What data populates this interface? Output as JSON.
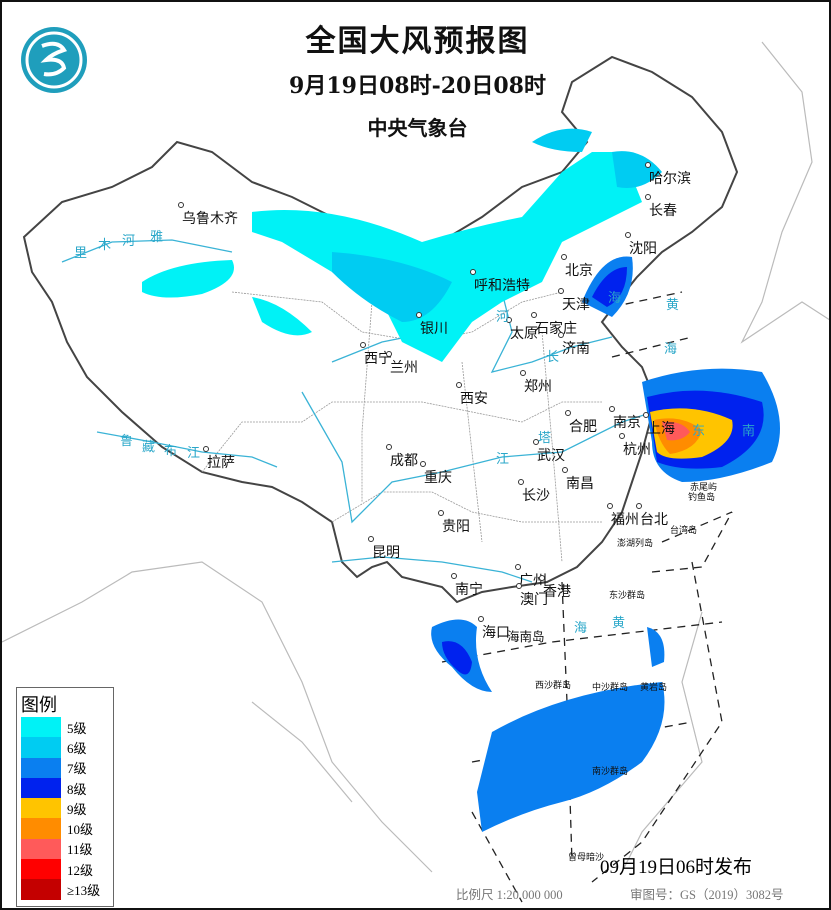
{
  "header": {
    "title": "全国大风预报图",
    "valid_period": "9月19日08时-20日08时",
    "issuer": "中央气象台",
    "logo_icon": "cma-logo"
  },
  "legend": {
    "title": "图例",
    "items": [
      {
        "label": "5级",
        "color": "#00f2f6"
      },
      {
        "label": "6级",
        "color": "#00ccf2"
      },
      {
        "label": "7级",
        "color": "#0a7ff0"
      },
      {
        "label": "8级",
        "color": "#0022ee"
      },
      {
        "label": "9级",
        "color": "#ffc400"
      },
      {
        "label": "10级",
        "color": "#ff8c00"
      },
      {
        "label": "11级",
        "color": "#ff5a5a"
      },
      {
        "label": "12级",
        "color": "#ff0000"
      },
      {
        "label": "≥13级",
        "color": "#c40000"
      }
    ]
  },
  "cities": [
    "乌鲁木齐",
    "哈尔滨",
    "长春",
    "沈阳",
    "北京",
    "天津",
    "呼和浩特",
    "银川",
    "太原",
    "石家庄",
    "济南",
    "西宁",
    "兰州",
    "郑州",
    "西安",
    "南京",
    "上海",
    "合肥",
    "杭州",
    "武汉",
    "成都",
    "重庆",
    "拉萨",
    "南昌",
    "长沙",
    "福州",
    "台北",
    "贵阳",
    "昆明",
    "南宁",
    "广州",
    "香港",
    "澳门",
    "海口"
  ],
  "islands": [
    "海南岛",
    "赤尾屿",
    "钓鱼岛",
    "台湾岛",
    "澎湖列岛",
    "东沙群岛",
    "西沙群岛",
    "中沙群岛",
    "黄岩岛",
    "南沙群岛",
    "曾母暗沙"
  ],
  "water_labels": [
    "海",
    "黄",
    "海",
    "东",
    "南",
    "海",
    "黄",
    "河",
    "长",
    "江",
    "塔",
    "里",
    "木",
    "河",
    "雅",
    "鲁",
    "藏",
    "布",
    "江"
  ],
  "footer": {
    "issued": "09月19日06时发布",
    "scale": "比例尺 1:20 000 000",
    "approval": "审图号：GS（2019）3082号"
  }
}
